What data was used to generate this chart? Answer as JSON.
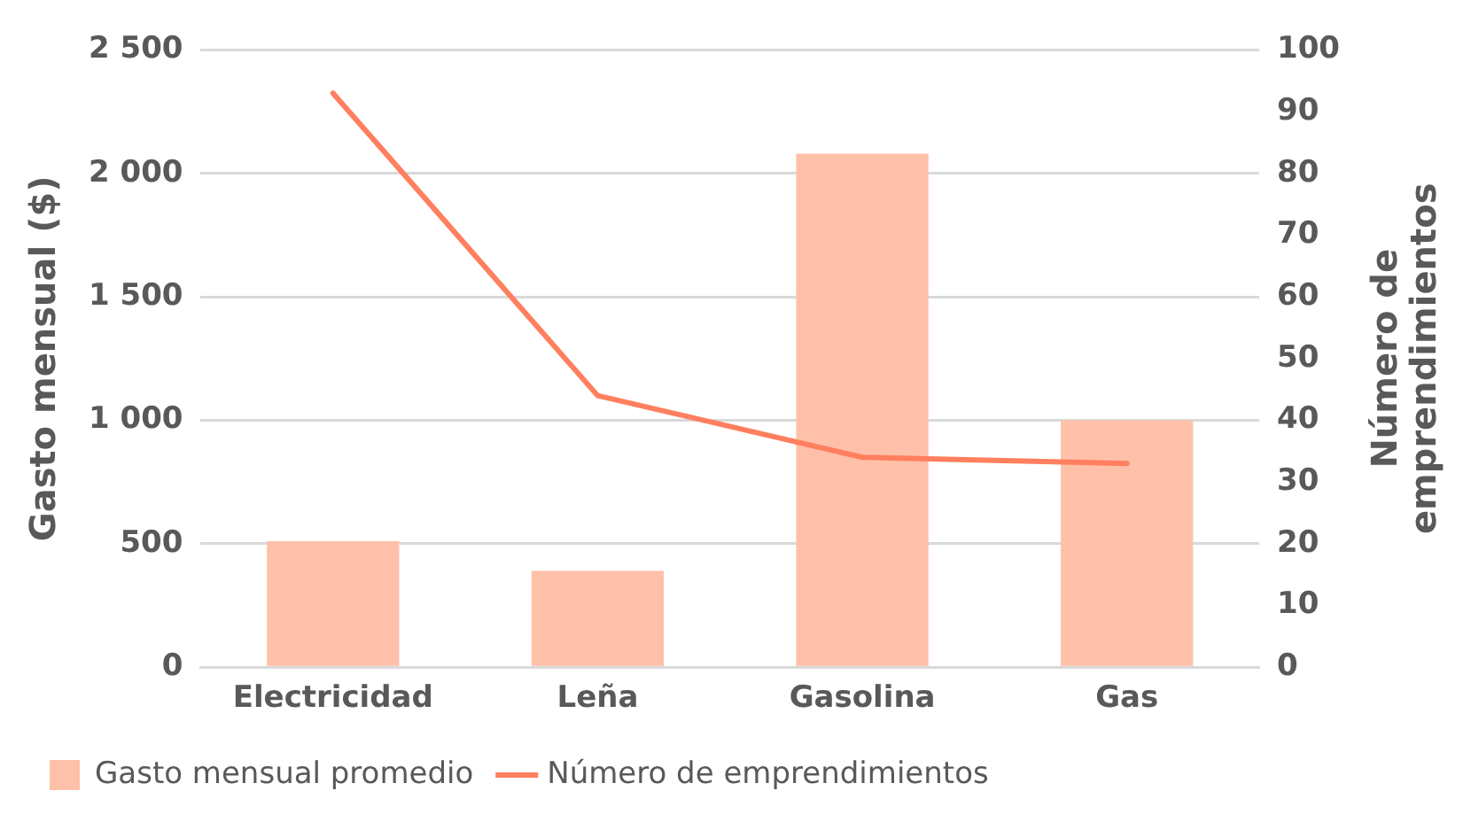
{
  "chart_data": {
    "type": "bar",
    "ylabel": "Gasto mensual ($)",
    "y2label": "Número de\nemprendimientos",
    "categories": [
      "Electricidad",
      "Leña",
      "Gasolina",
      "Gas"
    ],
    "series": [
      {
        "name": "Gasto mensual promedio",
        "color": "#ffc0aa",
        "values": [
          510,
          390,
          2080,
          1000
        ]
      },
      {
        "name": "Número de emprendimientos",
        "type": "line",
        "axis": "y2",
        "color": "#ff7f5e",
        "values": [
          93,
          44,
          34,
          33
        ]
      }
    ],
    "ylim": [
      0,
      2500
    ],
    "yticks": [
      0,
      500,
      {
        "value": 1000,
        "label": "1 000"
      },
      {
        "value": 1500,
        "label": "1 500"
      },
      {
        "value": 2000,
        "label": "2 000"
      },
      {
        "value": 2500,
        "label": "2 500"
      }
    ],
    "y2lim": [
      0,
      100
    ],
    "y2ticks": [
      0,
      10,
      20,
      30,
      40,
      50,
      60,
      70,
      80,
      90,
      100
    ],
    "grid": "y",
    "legend": "bottom left",
    "marker": "none"
  }
}
